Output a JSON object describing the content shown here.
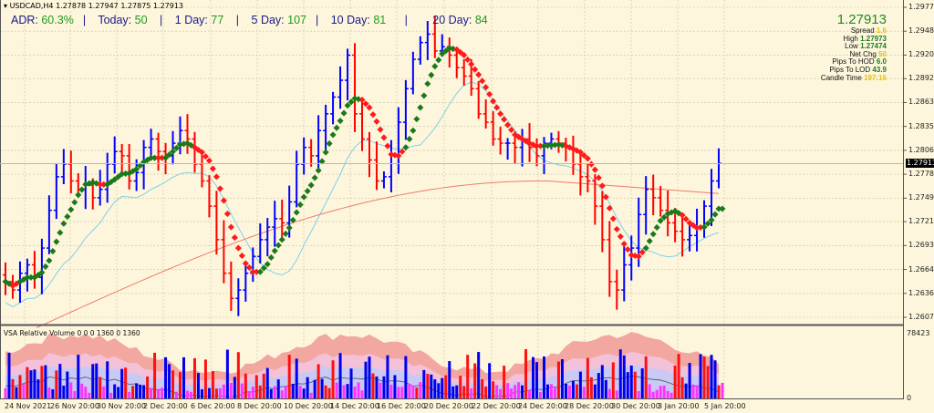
{
  "header": {
    "symbol_line": "USDCAD,H4  1.27878 1.27947 1.27875 1.27913"
  },
  "adr_panel": {
    "items": [
      {
        "label": "ADR:",
        "value": "60.3%"
      },
      {
        "label": "Today:",
        "value": "50"
      },
      {
        "label": "1 Day:",
        "value": "77"
      },
      {
        "label": "5 Day:",
        "value": "107"
      },
      {
        "label": "10 Day:",
        "value": "81"
      },
      {
        "label": "20 Day:",
        "value": "84"
      }
    ]
  },
  "info_panel": {
    "price": "1.27913",
    "rows": [
      {
        "label": "Spread",
        "value": "1.6",
        "color": "yellow"
      },
      {
        "label": "High",
        "value": "1.27973",
        "color": "green"
      },
      {
        "label": "Low",
        "value": "1.27474",
        "color": "green"
      },
      {
        "label": "Net Chg",
        "value": "50",
        "color": "yellow"
      },
      {
        "label": "Pips To HOD",
        "value": "6.0",
        "color": "green"
      },
      {
        "label": "Pips To LOD",
        "value": "43.9",
        "color": "green"
      },
      {
        "label": "Candle Time",
        "value": "197:16",
        "color": "yellow"
      }
    ]
  },
  "price_axis": {
    "ticks": [
      "1.29770",
      "1.29485",
      "1.29200",
      "1.28920",
      "1.28635",
      "1.28350",
      "1.28065",
      "1.27780",
      "1.27495",
      "1.27215",
      "1.26930",
      "1.26645",
      "1.26360",
      "1.26075"
    ],
    "current_price_label": "1.27913"
  },
  "volume_pane": {
    "title": "VSA Relative Volume 0 0 0 1360 0 1360",
    "axis_max": "78423",
    "axis_min": "0"
  },
  "time_axis": {
    "labels": [
      "24 Nov 2021",
      "26 Nov 20:00",
      "30 Nov 20:00",
      "2 Dec 20:00",
      "6 Dec 20:00",
      "8 Dec 20:00",
      "10 Dec 20:00",
      "14 Dec 20:00",
      "16 Dec 20:00",
      "20 Dec 20:00",
      "22 Dec 20:00",
      "24 Dec 20:00",
      "28 Dec 20:00",
      "30 Dec 20:00",
      "3 Jan 20:00",
      "5 Jan 20:00"
    ]
  },
  "colors": {
    "background": "#fdf6dc",
    "bull_bar": "#0000ff",
    "bear_bar": "#ff0000",
    "trend_up": "#1a7a1a",
    "trend_down": "#ff1a1a",
    "ma_fast": "#7fd0e8",
    "ma_slow": "#f07a6a",
    "grid": "#c8c0a0"
  },
  "chart_data": {
    "type": "ohlc",
    "title": "USDCAD,H4",
    "symbol": "USDCAD",
    "timeframe": "H4",
    "ylim": [
      1.2595,
      1.2982
    ],
    "y_ticks": [
      1.2977,
      1.29485,
      1.292,
      1.2892,
      1.28635,
      1.2835,
      1.28065,
      1.2778,
      1.27495,
      1.27215,
      1.2693,
      1.26645,
      1.2636,
      1.26075
    ],
    "x_labels": [
      "24 Nov 2021",
      "26 Nov 20:00",
      "30 Nov 20:00",
      "2 Dec 20:00",
      "6 Dec 20:00",
      "8 Dec 20:00",
      "10 Dec 20:00",
      "14 Dec 20:00",
      "16 Dec 20:00",
      "20 Dec 20:00",
      "22 Dec 20:00",
      "24 Dec 20:00",
      "28 Dec 20:00",
      "30 Dec 20:00",
      "3 Jan 20:00",
      "5 Jan 20:00"
    ],
    "last_close": 1.27913,
    "closes": [
      1.265,
      1.264,
      1.266,
      1.267,
      1.2655,
      1.269,
      1.2735,
      1.2775,
      1.279,
      1.277,
      1.276,
      1.2765,
      1.275,
      1.276,
      1.279,
      1.2805,
      1.28,
      1.277,
      1.278,
      1.281,
      1.282,
      1.2805,
      1.28,
      1.2815,
      1.283,
      1.282,
      1.279,
      1.277,
      1.274,
      1.27,
      1.266,
      1.263,
      1.264,
      1.266,
      1.268,
      1.27,
      1.2715,
      1.2725,
      1.272,
      1.2745,
      1.279,
      1.281,
      1.28,
      1.283,
      1.285,
      1.287,
      1.289,
      1.292,
      1.285,
      1.282,
      1.2795,
      1.277,
      1.2775,
      1.28,
      1.284,
      1.288,
      1.2915,
      1.2935,
      1.2945,
      1.2925,
      1.293,
      1.292,
      1.2905,
      1.2895,
      1.288,
      1.285,
      1.284,
      1.282,
      1.2815,
      1.2815,
      1.281,
      1.282,
      1.281,
      1.28,
      1.2815,
      1.282,
      1.2815,
      1.281,
      1.279,
      1.2775,
      1.277,
      1.274,
      1.27,
      1.265,
      1.264,
      1.267,
      1.269,
      1.273,
      1.276,
      1.275,
      1.2735,
      1.272,
      1.271,
      1.27,
      1.2705,
      1.2715,
      1.274,
      1.277,
      1.2791
    ],
    "series": [
      {
        "name": "Trend MA (dotted, green=up / red=down)"
      },
      {
        "name": "MA fast (light blue)"
      },
      {
        "name": "MA slow (salmon)"
      }
    ],
    "volume": {
      "title": "VSA Relative Volume",
      "ylim": [
        0,
        78423
      ]
    }
  }
}
